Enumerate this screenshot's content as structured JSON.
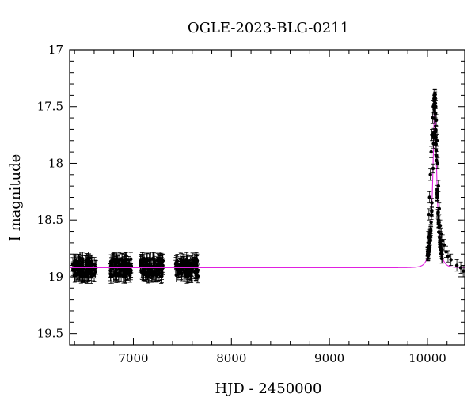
{
  "chart_data": {
    "type": "scatter",
    "title": "OGLE-2023-BLG-0211",
    "xlabel": "HJD - 2450000",
    "ylabel": "I magnitude",
    "xlim": [
      6350,
      10380
    ],
    "ylim": [
      19.6,
      17.0
    ],
    "y_inverted": true,
    "xticks": [
      7000,
      8000,
      9000,
      10000
    ],
    "yticks": [
      17,
      17.5,
      18,
      18.5,
      19,
      19.5
    ],
    "xtick_labels": [
      "7000",
      "8000",
      "9000",
      "10000"
    ],
    "ytick_labels": [
      "17",
      "17.5",
      "18",
      "18.5",
      "19",
      "19.5"
    ],
    "baseline_mag": 18.92,
    "typical_error": 0.06,
    "observation_seasons": [
      [
        6380,
        6620
      ],
      [
        6760,
        6980
      ],
      [
        7070,
        7310
      ],
      [
        7430,
        7660
      ]
    ],
    "event": {
      "t0": 10075,
      "peak_mag": 17.4,
      "tE": 45,
      "peak_points": [
        [
          10008,
          18.65
        ],
        [
          10015,
          18.45
        ],
        [
          10022,
          18.3
        ],
        [
          10030,
          18.1
        ],
        [
          10038,
          17.9
        ],
        [
          10045,
          17.75
        ],
        [
          10052,
          17.6
        ],
        [
          10060,
          17.5
        ],
        [
          10067,
          17.43
        ],
        [
          10072,
          17.4
        ],
        [
          10078,
          17.42
        ],
        [
          10084,
          17.5
        ],
        [
          10090,
          17.62
        ],
        [
          10097,
          17.8
        ],
        [
          10104,
          18.0
        ],
        [
          10112,
          18.2
        ],
        [
          10120,
          18.4
        ],
        [
          10130,
          18.55
        ],
        [
          10140,
          18.62
        ],
        [
          10155,
          18.68
        ],
        [
          10170,
          18.72
        ],
        [
          10190,
          18.78
        ],
        [
          10210,
          18.82
        ],
        [
          10240,
          18.85
        ],
        [
          10300,
          18.9
        ],
        [
          10340,
          18.92
        ],
        [
          10365,
          18.95
        ]
      ]
    },
    "colors": {
      "points": "#000000",
      "model": "#e020e0",
      "axes": "#000000"
    }
  }
}
